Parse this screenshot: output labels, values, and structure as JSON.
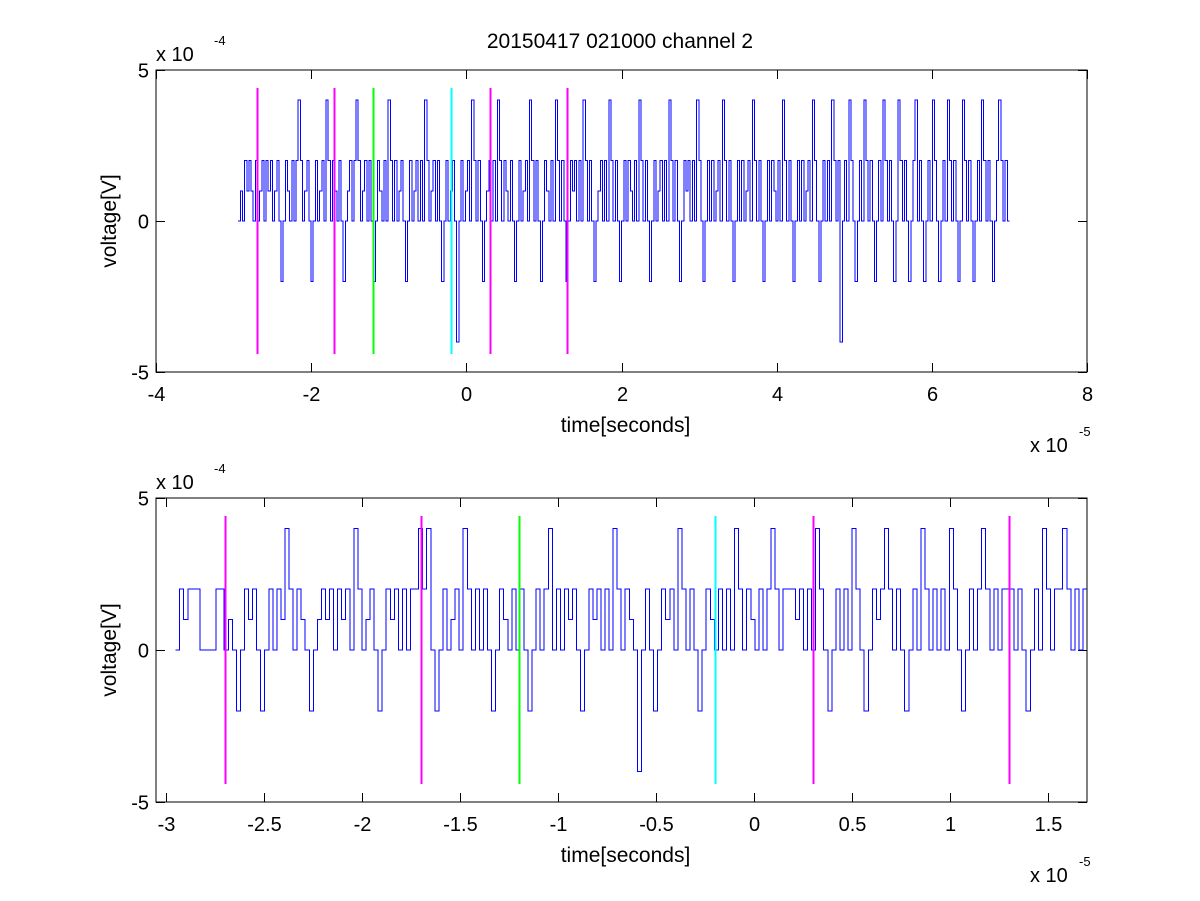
{
  "figure_title": "20150417 021000 channel 2",
  "colors": {
    "signal": "#0000ff",
    "magenta": "#ff00ff",
    "green": "#00ff00",
    "cyan": "#00ffff",
    "axes": "#000000",
    "background": "#ffffff"
  },
  "chart_data": [
    {
      "type": "line",
      "id": "top",
      "title": "20150417 021000 channel 2",
      "xlabel": "time[seconds]",
      "ylabel": "voltage[V]",
      "x_multiplier": {
        "base": "x 10",
        "exponent": "-5"
      },
      "y_multiplier": {
        "base": "x 10",
        "exponent": "-4"
      },
      "xlim": [
        -4,
        8
      ],
      "ylim": [
        -5,
        5
      ],
      "xticks": [
        -4,
        -2,
        0,
        2,
        4,
        6,
        8
      ],
      "xtick_labels": [
        "-4",
        "-2",
        "0",
        "2",
        "4",
        "6",
        "8"
      ],
      "yticks": [
        -5,
        0,
        5
      ],
      "ytick_labels": [
        "-5",
        "0",
        "5"
      ],
      "grid": false,
      "series": [
        {
          "color": "#0000ff",
          "x_range": [
            -2.94,
            7.0
          ],
          "levels": [
            -4,
            -2,
            0,
            1,
            2,
            4
          ],
          "values": [
            0,
            1,
            0,
            2,
            1,
            2,
            1,
            0,
            2,
            0,
            1,
            2,
            0,
            2,
            1,
            2,
            0,
            1,
            2,
            0,
            -2,
            0,
            2,
            1,
            0,
            2,
            0,
            2,
            4,
            2,
            0,
            1,
            2,
            0,
            -2,
            0,
            2,
            0,
            1,
            2,
            0,
            4,
            2,
            0,
            2,
            1,
            0,
            2,
            0,
            -2,
            0,
            1,
            2,
            0,
            2,
            4,
            2,
            0,
            1,
            2,
            0,
            2,
            0,
            -2,
            0,
            2,
            1,
            0,
            2,
            0,
            4,
            2,
            0,
            2,
            0,
            1,
            2,
            0,
            -2,
            0,
            2,
            0,
            1,
            2,
            0,
            2,
            0,
            4,
            2,
            0,
            1,
            2,
            0,
            2,
            0,
            -2,
            0,
            2,
            0,
            1,
            2,
            0,
            -4,
            0,
            2,
            0,
            1,
            2,
            0,
            4,
            2,
            0,
            2,
            0,
            -2,
            0,
            1,
            2,
            0,
            2,
            0,
            4,
            2,
            0,
            2,
            1,
            0,
            2,
            0,
            -2,
            0,
            2,
            0,
            1,
            2,
            0,
            4,
            2,
            0,
            2,
            0,
            -2,
            0,
            2,
            1,
            0,
            2,
            0,
            4,
            2,
            0,
            2,
            0,
            -2,
            0,
            2,
            1,
            2,
            0,
            2,
            0,
            4,
            2,
            0,
            2,
            0,
            -2,
            0,
            1,
            2,
            0,
            2,
            0,
            4,
            2,
            0,
            2,
            0,
            -2,
            0,
            2,
            0,
            2,
            1,
            0,
            2,
            0,
            4,
            2,
            0,
            2,
            0,
            -2,
            0,
            2,
            0,
            1,
            2,
            0,
            2,
            0,
            4,
            2,
            0,
            2,
            0,
            -2,
            0,
            2,
            1,
            2,
            0,
            2,
            0,
            4,
            2,
            0,
            -2,
            0,
            2,
            0,
            2,
            0,
            1,
            2,
            0,
            4,
            2,
            0,
            2,
            0,
            -2,
            0,
            2,
            0,
            2,
            0,
            1,
            2,
            0,
            4,
            2,
            0,
            2,
            0,
            -2,
            0,
            2,
            0,
            2,
            1,
            0,
            2,
            0,
            4,
            2,
            0,
            2,
            0,
            -2,
            0,
            2,
            0,
            2,
            0,
            1,
            2,
            0,
            4,
            2,
            0,
            -2,
            0,
            2,
            0,
            2,
            0,
            4,
            2,
            0,
            2,
            -4,
            0,
            2,
            0,
            4,
            2,
            0,
            -2,
            0,
            2,
            0,
            4,
            2,
            0,
            2,
            0,
            -2,
            0,
            2,
            0,
            4,
            2,
            0,
            2,
            0,
            -2,
            0,
            4,
            2,
            0,
            2,
            0,
            -2,
            0,
            2,
            4,
            0,
            2,
            0,
            -2,
            0,
            2,
            0,
            4,
            2,
            0,
            -2,
            0,
            2,
            0,
            4,
            2,
            0,
            2,
            0,
            -2,
            0,
            4,
            2,
            0,
            2,
            0,
            -2,
            0,
            2,
            0,
            4,
            2,
            0,
            2,
            0,
            -2,
            0,
            2,
            4,
            2,
            0,
            2,
            0
          ]
        }
      ],
      "vertical_markers": [
        {
          "x": -2.7,
          "color": "magenta"
        },
        {
          "x": -1.7,
          "color": "magenta"
        },
        {
          "x": -1.2,
          "color": "green"
        },
        {
          "x": -0.2,
          "color": "cyan"
        },
        {
          "x": 0.3,
          "color": "magenta"
        },
        {
          "x": 1.3,
          "color": "magenta"
        }
      ],
      "marker_y_range": [
        -4.4,
        4.4
      ]
    },
    {
      "type": "line",
      "id": "bottom",
      "title": "",
      "xlabel": "time[seconds]",
      "ylabel": "voltage[V]",
      "x_multiplier": {
        "base": "x 10",
        "exponent": "-5"
      },
      "y_multiplier": {
        "base": "x 10",
        "exponent": "-4"
      },
      "xlim": [
        -3.05,
        1.7
      ],
      "ylim": [
        -5,
        5
      ],
      "xticks": [
        -3,
        -2.5,
        -2,
        -1.5,
        -1,
        -0.5,
        0,
        0.5,
        1,
        1.5
      ],
      "xtick_labels": [
        "-3",
        "-2.5",
        "-2",
        "-1.5",
        "-1",
        "-0.5",
        "0",
        "0.5",
        "1",
        "1.5"
      ],
      "yticks": [
        -5,
        0,
        5
      ],
      "ytick_labels": [
        "-5",
        "0",
        "5"
      ],
      "grid": false,
      "series": [
        {
          "color": "#0000ff",
          "x_range": [
            -2.95,
            1.7
          ],
          "levels": [
            -4,
            -2,
            0,
            1,
            2,
            4
          ],
          "values": [
            0,
            2,
            1,
            2,
            2,
            2,
            0,
            0,
            0,
            0,
            2,
            2,
            0,
            1,
            0,
            -2,
            0,
            2,
            1,
            2,
            0,
            -2,
            0,
            2,
            0,
            2,
            1,
            4,
            2,
            0,
            2,
            1,
            0,
            -2,
            0,
            1,
            2,
            1,
            2,
            0,
            2,
            1,
            2,
            0,
            4,
            2,
            0,
            1,
            2,
            0,
            -2,
            0,
            2,
            1,
            2,
            0,
            2,
            0,
            2,
            2,
            4,
            2,
            4,
            0,
            -2,
            0,
            2,
            0,
            1,
            2,
            0,
            4,
            2,
            0,
            2,
            0,
            2,
            0,
            -2,
            0,
            2,
            1,
            0,
            2,
            0,
            2,
            0,
            -2,
            0,
            2,
            0,
            2,
            4,
            0,
            2,
            0,
            2,
            1,
            2,
            0,
            -2,
            0,
            2,
            1,
            2,
            0,
            2,
            0,
            4,
            2,
            0,
            2,
            1,
            0,
            -4,
            0,
            2,
            0,
            -2,
            0,
            2,
            1,
            2,
            0,
            4,
            2,
            0,
            2,
            0,
            -2,
            0,
            2,
            1,
            0,
            2,
            0,
            2,
            0,
            4,
            2,
            0,
            2,
            1,
            0,
            2,
            0,
            2,
            4,
            2,
            0,
            2,
            2,
            2,
            1,
            2,
            0,
            2,
            0,
            4,
            2,
            0,
            -2,
            0,
            2,
            0,
            2,
            0,
            4,
            2,
            0,
            -2,
            0,
            2,
            1,
            2,
            4,
            2,
            0,
            2,
            0,
            -2,
            0,
            2,
            0,
            4,
            2,
            0,
            2,
            0,
            2,
            0,
            4,
            2,
            0,
            -2,
            0,
            2,
            0,
            2,
            4,
            2,
            0,
            2,
            0,
            2,
            2,
            2,
            0,
            2,
            0,
            -2,
            0,
            2,
            0,
            4,
            2,
            0,
            2,
            2,
            4,
            2,
            0,
            2,
            0,
            2
          ]
        }
      ],
      "vertical_markers": [
        {
          "x": -2.7,
          "color": "magenta"
        },
        {
          "x": -1.7,
          "color": "magenta"
        },
        {
          "x": -1.2,
          "color": "green"
        },
        {
          "x": -0.2,
          "color": "cyan"
        },
        {
          "x": 0.3,
          "color": "magenta"
        },
        {
          "x": 1.3,
          "color": "magenta"
        }
      ],
      "marker_y_range": [
        -4.4,
        4.4
      ]
    }
  ]
}
